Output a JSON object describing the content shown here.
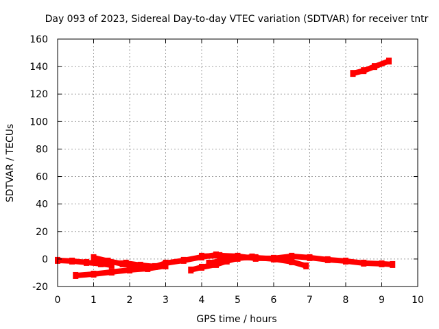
{
  "chart_data": {
    "type": "scatter",
    "title": "Day 093 of 2023, Sidereal Day-to-day VTEC variation (SDTVAR) for receiver tntr",
    "xlabel": "GPS time / hours",
    "ylabel": "SDTVAR / TECUs",
    "xlim": [
      0,
      10
    ],
    "ylim": [
      -20,
      160
    ],
    "xticks": [
      "0",
      "1",
      "2",
      "3",
      "4",
      "5",
      "6",
      "7",
      "8",
      "9",
      "10"
    ],
    "yticks": [
      "-20",
      "0",
      "20",
      "40",
      "60",
      "80",
      "100",
      "120",
      "140",
      "160"
    ],
    "grid": true,
    "series_color": "#ff0000",
    "series": [
      {
        "segments": [
          [
            [
              0.0,
              -1.0
            ],
            [
              0.4,
              -1.5
            ],
            [
              0.8,
              -2.5
            ],
            [
              1.2,
              -3.5
            ],
            [
              1.5,
              -4.5
            ]
          ],
          [
            [
              1.0,
              1.0
            ],
            [
              1.4,
              -1.5
            ],
            [
              1.8,
              -3.5
            ],
            [
              2.1,
              -5.0
            ]
          ],
          [
            [
              0.5,
              -12.0
            ],
            [
              1.0,
              -11.0
            ],
            [
              1.5,
              -9.5
            ],
            [
              2.0,
              -8.0
            ],
            [
              2.5,
              -7.0
            ],
            [
              3.0,
              -5.0
            ]
          ],
          [
            [
              1.9,
              -3.0
            ],
            [
              2.3,
              -4.5
            ],
            [
              2.7,
              -5.5
            ],
            [
              3.0,
              -3.0
            ],
            [
              3.5,
              -1.0
            ],
            [
              4.0,
              1.5
            ],
            [
              4.4,
              3.0
            ]
          ],
          [
            [
              3.7,
              -8.0
            ],
            [
              4.0,
              -6.0
            ],
            [
              4.4,
              -4.0
            ],
            [
              4.7,
              -1.5
            ],
            [
              5.0,
              0.5
            ],
            [
              5.4,
              1.5
            ]
          ],
          [
            [
              4.2,
              -3.0
            ],
            [
              4.6,
              -1.0
            ],
            [
              5.0,
              1.0
            ],
            [
              5.5,
              1.0
            ],
            [
              6.0,
              0.0
            ],
            [
              6.5,
              -2.0
            ],
            [
              6.9,
              -5.0
            ]
          ],
          [
            [
              4.0,
              2.0
            ],
            [
              4.5,
              2.5
            ],
            [
              5.0,
              2.0
            ],
            [
              5.5,
              0.5
            ],
            [
              6.0,
              0.5
            ],
            [
              6.5,
              2.0
            ],
            [
              7.0,
              1.0
            ],
            [
              7.5,
              -0.5
            ],
            [
              8.0,
              -1.5
            ],
            [
              8.5,
              -3.0
            ],
            [
              9.0,
              -3.5
            ],
            [
              9.3,
              -4.0
            ]
          ],
          [
            [
              8.2,
              135.0
            ],
            [
              8.5,
              137.0
            ],
            [
              8.8,
              140.0
            ],
            [
              9.2,
              144.0
            ]
          ]
        ]
      }
    ]
  }
}
